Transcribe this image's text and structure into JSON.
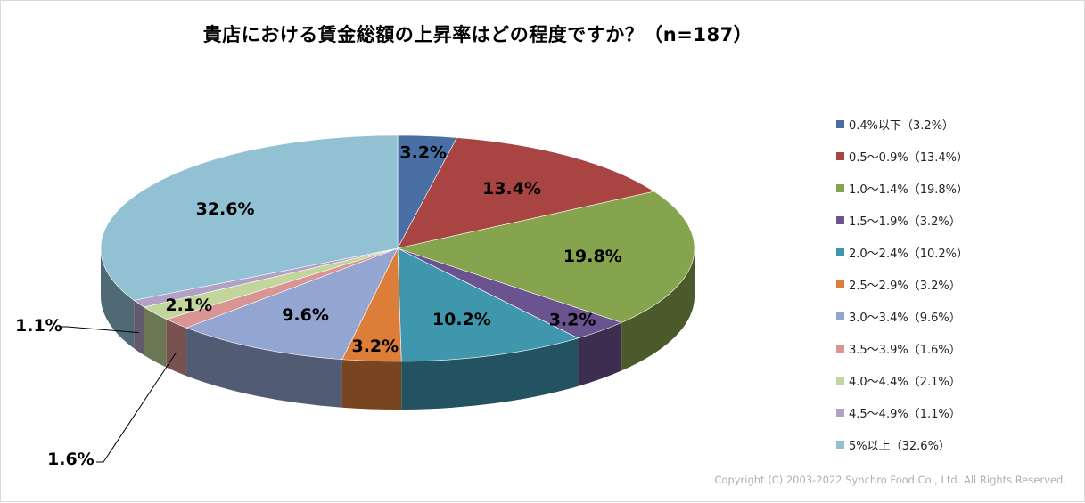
{
  "title": "貴店における賃金総額の上昇率はどの程度ですか？（n=187）",
  "copyright": "Copyright (C) 2003-2022 Synchro Food Co., Ltd. All Rights Reserved.",
  "chart_data": {
    "type": "pie",
    "style": "3d",
    "legend_position": "right",
    "title": "貴店における賃金総額の上昇率はどの程度ですか？（n=187）",
    "slices": [
      {
        "category": "0.4%以下",
        "legend": "0.4%以下（3.2%）",
        "value": 3.2,
        "label": "3.2%",
        "color": "#4a6fa5"
      },
      {
        "category": "0.5〜0.9%",
        "legend": "0.5〜0.9%（13.4%）",
        "value": 13.4,
        "label": "13.4%",
        "color": "#a84442"
      },
      {
        "category": "1.0〜1.4%",
        "legend": "1.0〜1.4%（19.8%）",
        "value": 19.8,
        "label": "19.8%",
        "color": "#86a34d"
      },
      {
        "category": "1.5〜1.9%",
        "legend": "1.5〜1.9%（3.2%）",
        "value": 3.2,
        "label": "3.2%",
        "color": "#6b5390"
      },
      {
        "category": "2.0〜2.4%",
        "legend": "2.0〜2.4%（10.2%）",
        "value": 10.2,
        "label": "10.2%",
        "color": "#3f97ae"
      },
      {
        "category": "2.5〜2.9%",
        "legend": "2.5〜2.9%（3.2%）",
        "value": 3.2,
        "label": "3.2%",
        "color": "#dc7d3a"
      },
      {
        "category": "3.0〜3.4%",
        "legend": "3.0〜3.4%（9.6%）",
        "value": 9.6,
        "label": "9.6%",
        "color": "#93a6d1"
      },
      {
        "category": "3.5〜3.9%",
        "legend": "3.5〜3.9%（1.6%）",
        "value": 1.6,
        "label": "1.6%",
        "color": "#d99594"
      },
      {
        "category": "4.0〜4.4%",
        "legend": "4.0〜4.4%（2.1%）",
        "value": 2.1,
        "label": "2.1%",
        "color": "#c2d69b"
      },
      {
        "category": "4.5〜4.9%",
        "legend": "4.5〜4.9%（1.1%）",
        "value": 1.1,
        "label": "1.1%",
        "color": "#b2a1c7"
      },
      {
        "category": "5%以上",
        "legend": "5%以上（32.6%）",
        "value": 32.6,
        "label": "32.6%",
        "color": "#92c1d4"
      }
    ]
  }
}
